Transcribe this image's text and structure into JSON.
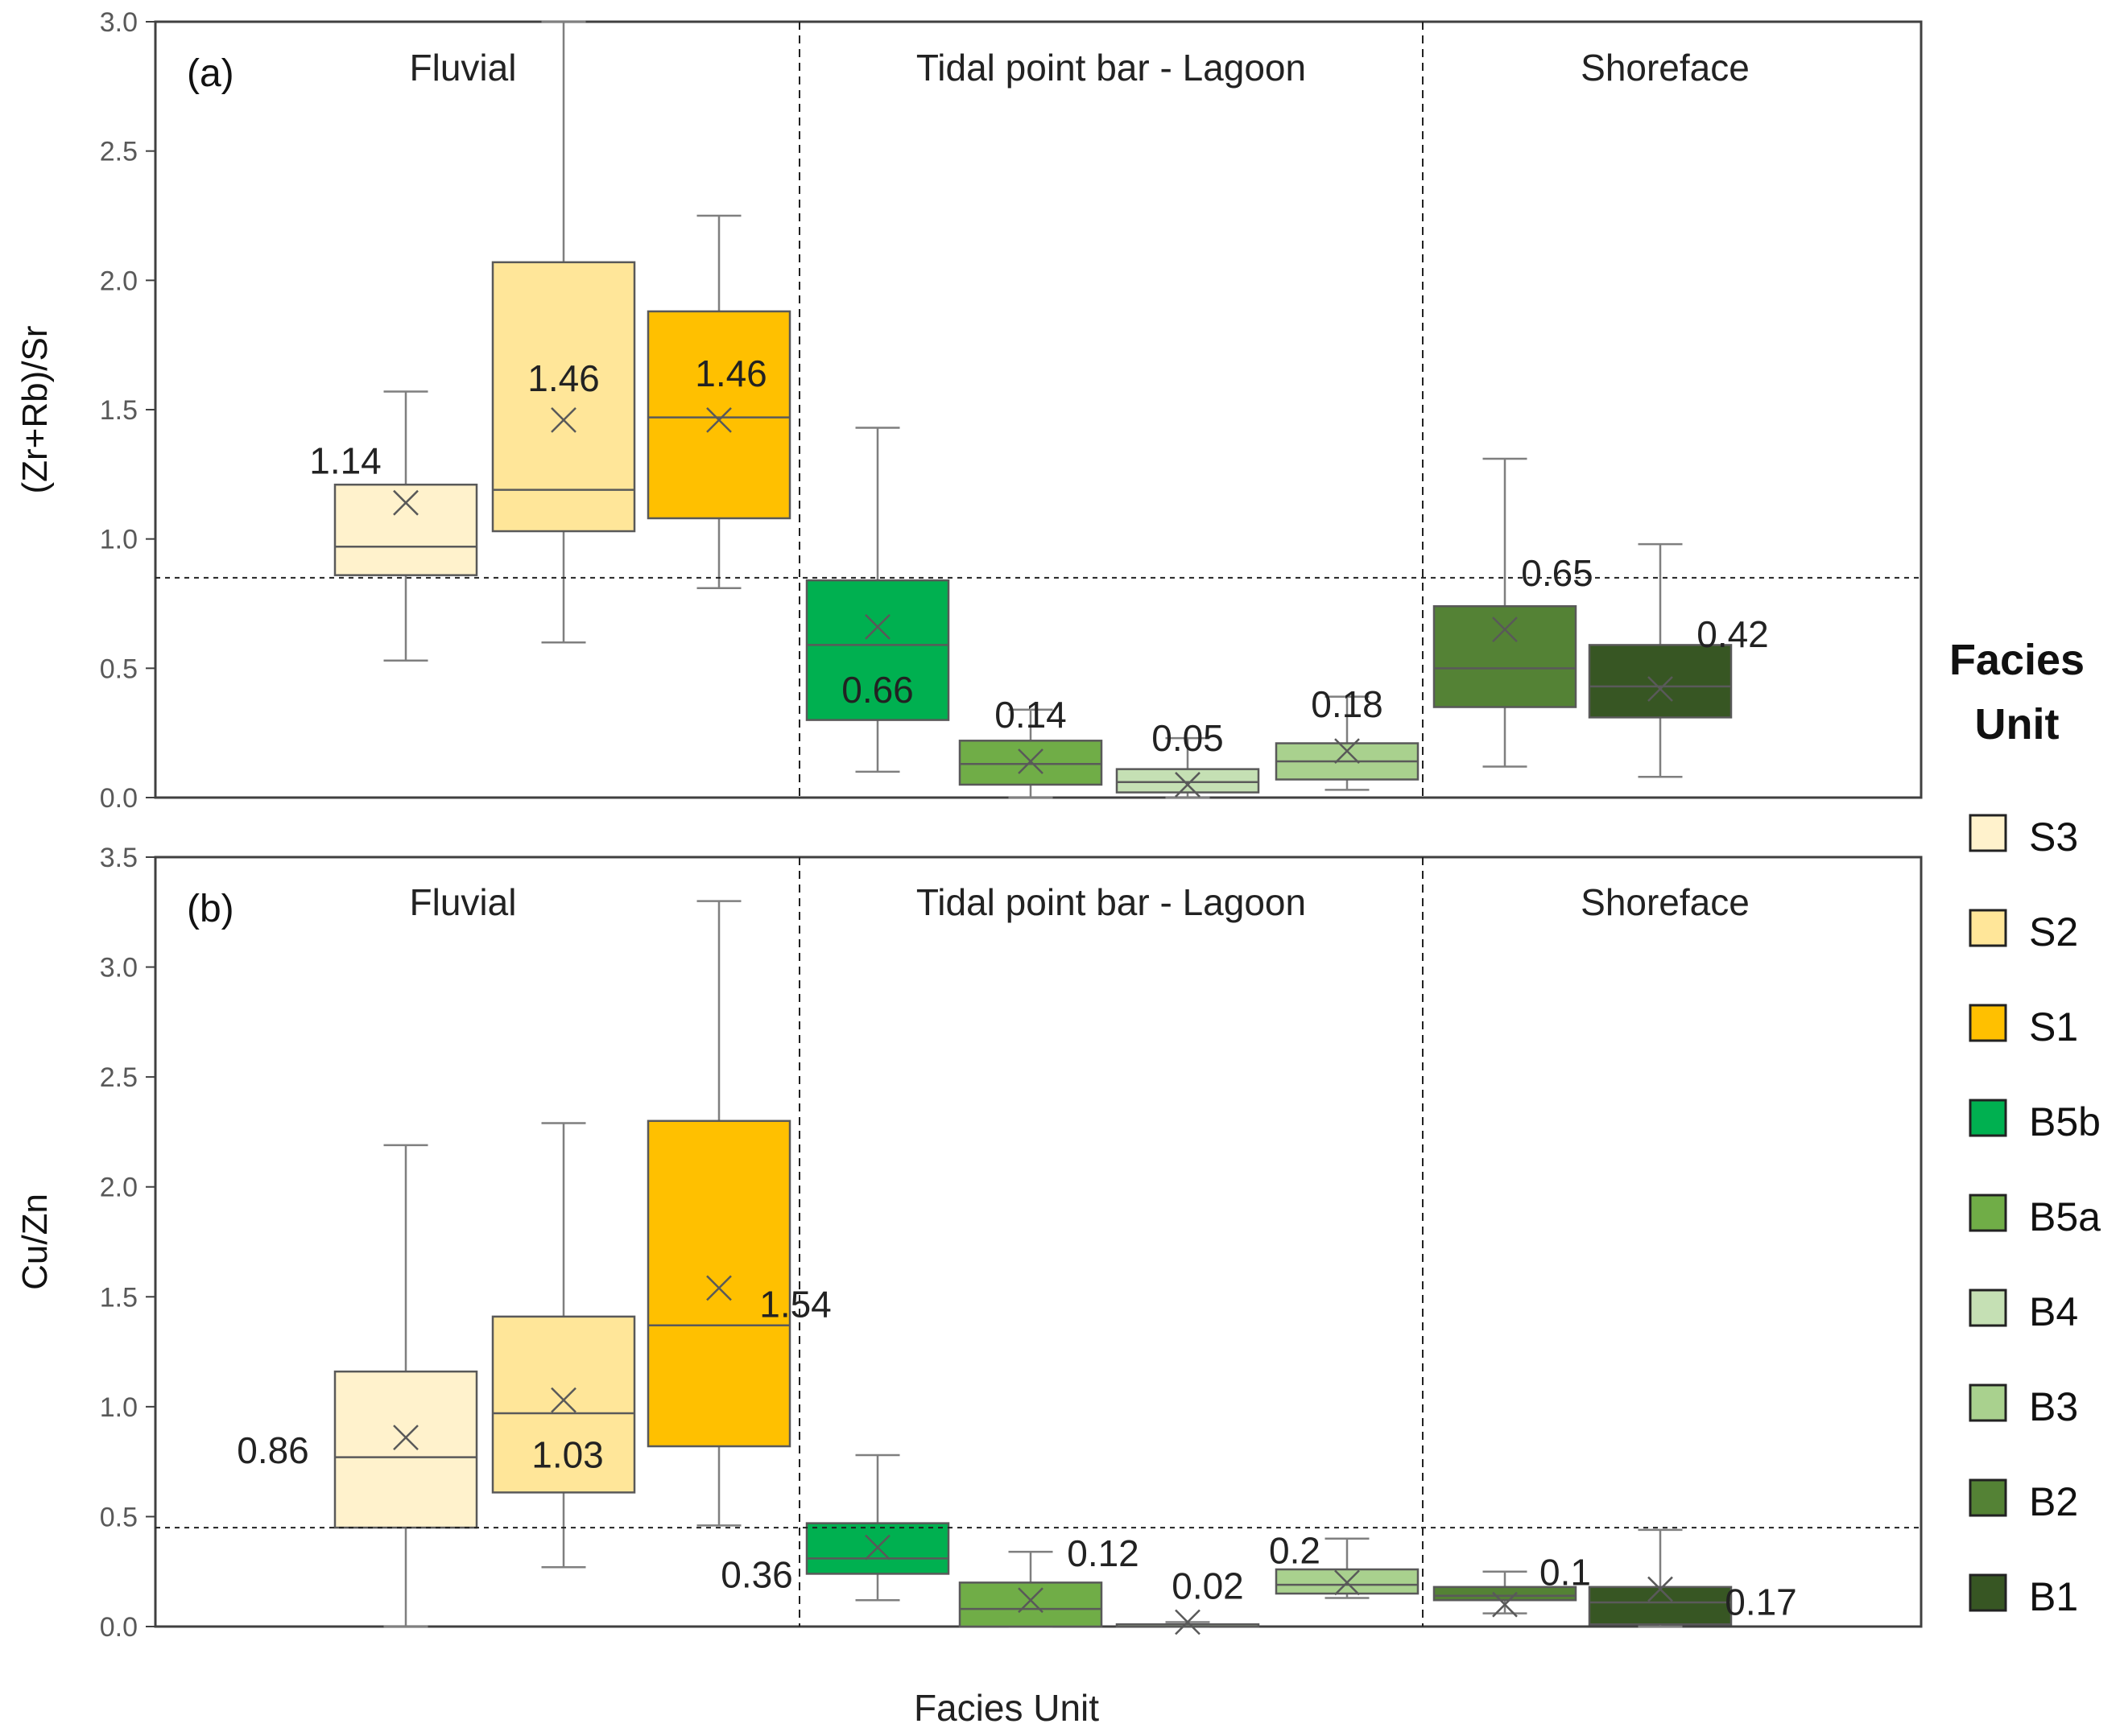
{
  "chart_data": [
    {
      "type": "box",
      "panel": "(a)",
      "ylabel": "(Zr+Rb)/Sr",
      "ylim": [
        0,
        3.0
      ],
      "yticks": [
        "0.0",
        "0.5",
        "1.0",
        "1.5",
        "2.0",
        "2.5",
        "3.0"
      ],
      "threshold": 0.85,
      "sections": [
        "Fluvial",
        "Tidal point bar - Lagoon",
        "Shoreface"
      ],
      "boxes": [
        {
          "unit": "S3",
          "min": 0.53,
          "q1": 0.86,
          "median": 0.97,
          "q3": 1.21,
          "max": 1.57,
          "mean": 1.14,
          "label": "1.14"
        },
        {
          "unit": "S2",
          "min": 0.6,
          "q1": 1.03,
          "median": 1.19,
          "q3": 2.07,
          "max": 3.0,
          "mean": 1.46,
          "label": "1.46"
        },
        {
          "unit": "S1",
          "min": 0.81,
          "q1": 1.08,
          "median": 1.47,
          "q3": 1.88,
          "max": 2.25,
          "mean": 1.46,
          "label": "1.46"
        },
        {
          "unit": "B5b",
          "min": 0.1,
          "q1": 0.3,
          "median": 0.59,
          "q3": 0.84,
          "max": 1.43,
          "mean": 0.66,
          "label": "0.66"
        },
        {
          "unit": "B5a",
          "min": 0.0,
          "q1": 0.05,
          "median": 0.13,
          "q3": 0.22,
          "max": 0.34,
          "mean": 0.14,
          "label": "0.14"
        },
        {
          "unit": "B4",
          "min": 0.0,
          "q1": 0.02,
          "median": 0.06,
          "q3": 0.11,
          "max": 0.23,
          "mean": 0.05,
          "label": "0.05"
        },
        {
          "unit": "B3",
          "min": 0.03,
          "q1": 0.07,
          "median": 0.14,
          "q3": 0.21,
          "max": 0.39,
          "mean": 0.18,
          "label": "0.18"
        },
        {
          "unit": "B2",
          "min": 0.12,
          "q1": 0.35,
          "median": 0.5,
          "q3": 0.74,
          "max": 1.31,
          "mean": 0.65,
          "label": "0.65"
        },
        {
          "unit": "B1",
          "min": 0.08,
          "q1": 0.31,
          "median": 0.43,
          "q3": 0.59,
          "max": 0.98,
          "mean": 0.42,
          "label": "0.42"
        }
      ]
    },
    {
      "type": "box",
      "panel": "(b)",
      "ylabel": "Cu/Zn",
      "ylim": [
        0,
        3.5
      ],
      "yticks": [
        "0.0",
        "0.5",
        "1.0",
        "1.5",
        "2.0",
        "2.5",
        "3.0",
        "3.5"
      ],
      "threshold": 0.45,
      "sections": [
        "Fluvial",
        "Tidal point bar - Lagoon",
        "Shoreface"
      ],
      "boxes": [
        {
          "unit": "S3",
          "min": 0.0,
          "q1": 0.45,
          "median": 0.77,
          "q3": 1.16,
          "max": 2.19,
          "mean": 0.86,
          "label": "0.86"
        },
        {
          "unit": "S2",
          "min": 0.27,
          "q1": 0.61,
          "median": 0.97,
          "q3": 1.41,
          "max": 2.29,
          "mean": 1.03,
          "label": "1.03"
        },
        {
          "unit": "S1",
          "min": 0.46,
          "q1": 0.82,
          "median": 1.37,
          "q3": 2.3,
          "max": 3.3,
          "mean": 1.54,
          "label": "1.54"
        },
        {
          "unit": "B5b",
          "min": 0.12,
          "q1": 0.24,
          "median": 0.31,
          "q3": 0.47,
          "max": 0.78,
          "mean": 0.36,
          "label": "0.36"
        },
        {
          "unit": "B5a",
          "min": 0.0,
          "q1": 0.0,
          "median": 0.08,
          "q3": 0.2,
          "max": 0.34,
          "mean": 0.12,
          "label": "0.12"
        },
        {
          "unit": "B4",
          "min": 0.0,
          "q1": 0.0,
          "median": 0.01,
          "q3": 0.01,
          "max": 0.02,
          "mean": 0.02,
          "label": "0.02"
        },
        {
          "unit": "B3",
          "min": 0.13,
          "q1": 0.15,
          "median": 0.19,
          "q3": 0.26,
          "max": 0.4,
          "mean": 0.2,
          "label": "0.2"
        },
        {
          "unit": "B2",
          "min": 0.06,
          "q1": 0.12,
          "median": 0.14,
          "q3": 0.18,
          "max": 0.25,
          "mean": 0.1,
          "label": "0.1"
        },
        {
          "unit": "B1",
          "min": 0.0,
          "q1": 0.01,
          "median": 0.11,
          "q3": 0.18,
          "max": 0.44,
          "mean": 0.17,
          "label": "0.17"
        }
      ]
    }
  ],
  "xlabel": "Facies Unit",
  "legend": {
    "title_line1": "Facies",
    "title_line2": "Unit",
    "items": [
      {
        "label": "S3",
        "color": "#FFF2CC"
      },
      {
        "label": "S2",
        "color": "#FFE699"
      },
      {
        "label": "S1",
        "color": "#FFC000"
      },
      {
        "label": "B5b",
        "color": "#00B050"
      },
      {
        "label": "B5a",
        "color": "#70AD47"
      },
      {
        "label": "B4",
        "color": "#C5E0B4"
      },
      {
        "label": "B3",
        "color": "#A9D18E"
      },
      {
        "label": "B2",
        "color": "#548235"
      },
      {
        "label": "B1",
        "color": "#375623"
      }
    ]
  }
}
